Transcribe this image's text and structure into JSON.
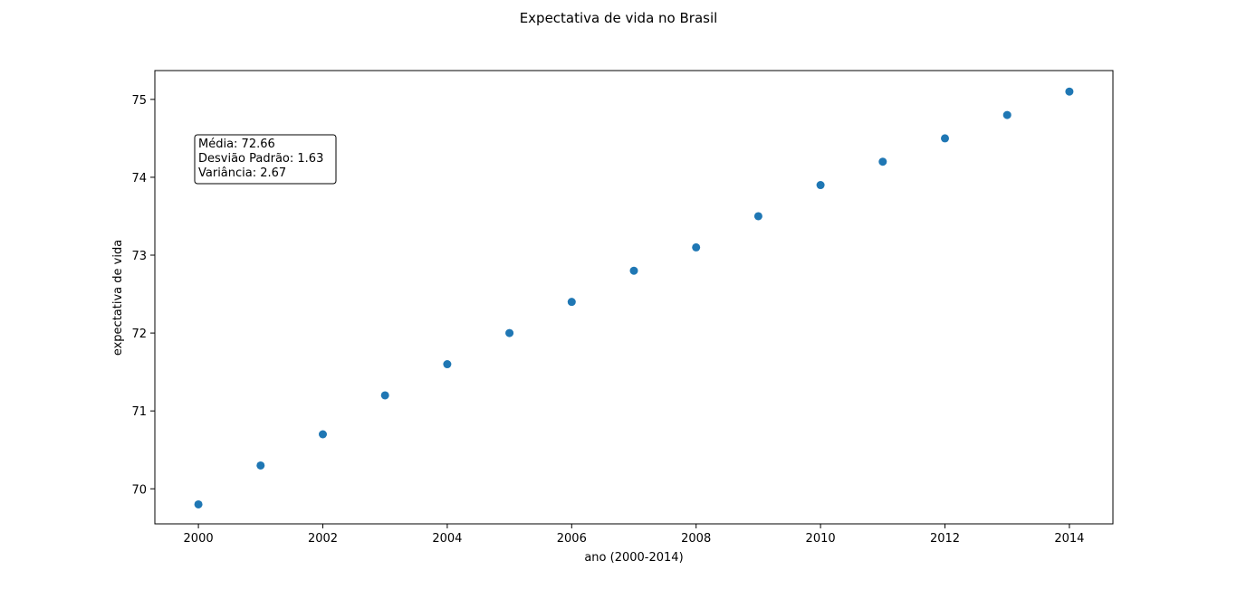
{
  "chart_data": {
    "type": "scatter",
    "title": "Expectativa de vida no Brasil",
    "xlabel": "ano (2000-2014)",
    "ylabel": "expectativa de vida",
    "x": [
      2000,
      2001,
      2002,
      2003,
      2004,
      2005,
      2006,
      2007,
      2008,
      2009,
      2010,
      2011,
      2012,
      2013,
      2014
    ],
    "y": [
      69.8,
      70.3,
      70.7,
      71.2,
      71.6,
      72.0,
      72.4,
      72.8,
      73.1,
      73.5,
      73.9,
      74.2,
      74.5,
      74.8,
      75.1
    ],
    "xlim": [
      1999.3,
      2014.7
    ],
    "ylim": [
      69.55,
      75.37
    ],
    "xticks": [
      2000,
      2002,
      2004,
      2006,
      2008,
      2010,
      2012,
      2014
    ],
    "yticks": [
      70,
      71,
      72,
      73,
      74,
      75
    ],
    "grid": false,
    "marker_color": "#1f77b4",
    "annotation": {
      "lines": [
        "Média: 72.66",
        "Desvião Padrão: 1.63",
        "Variância: 2.67"
      ]
    }
  }
}
